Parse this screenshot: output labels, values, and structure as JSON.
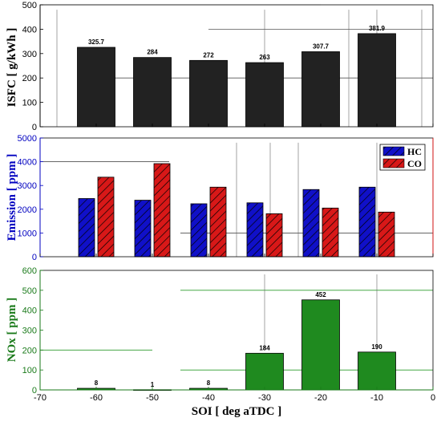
{
  "chart_data": [
    {
      "type": "bar",
      "ylabel": "ISFC [ g/kWh ]",
      "ylim": [
        0,
        500
      ],
      "yticks": [
        "0",
        "100",
        "200",
        "300",
        "400",
        "500"
      ],
      "x": [
        -60,
        -50,
        -40,
        -30,
        -20,
        -10
      ],
      "values": [
        325.7,
        284,
        272,
        263,
        307.7,
        381.9
      ],
      "data_labels": [
        "325.7",
        "284",
        "272",
        "263",
        "307.7",
        "381.9"
      ],
      "colors": {
        "bar": "#222222",
        "axis": "#000000"
      }
    },
    {
      "type": "bar",
      "ylabel": "Emission [ ppm ]",
      "ylim": [
        0,
        5000
      ],
      "yticks": [
        "0",
        "1000",
        "2000",
        "3000",
        "4000",
        "5000"
      ],
      "x": [
        -60,
        -50,
        -40,
        -30,
        -20,
        -10
      ],
      "series": [
        {
          "name": "HC",
          "values": [
            2450,
            2380,
            2230,
            2270,
            2830,
            2930
          ],
          "color": "#1010c8"
        },
        {
          "name": "CO",
          "values": [
            3350,
            3920,
            2930,
            1810,
            2050,
            1880
          ],
          "color": "#d81818"
        }
      ],
      "legend": "top-right",
      "colors": {
        "left_axis": "#0000c0",
        "right_axis": "#d01010"
      }
    },
    {
      "type": "bar",
      "ylabel": "NOx [ ppm ]",
      "xlabel": "SOI [ deg aTDC ]",
      "ylim": [
        0,
        600
      ],
      "yticks": [
        "0",
        "100",
        "200",
        "300",
        "400",
        "500",
        "600"
      ],
      "xlim": [
        -70,
        0
      ],
      "xticks": [
        "-70",
        "-60",
        "-50",
        "-40",
        "-30",
        "-20",
        "-10",
        "0"
      ],
      "x": [
        -60,
        -50,
        -40,
        -30,
        -20,
        -10
      ],
      "values": [
        8,
        1,
        8,
        184,
        452,
        190
      ],
      "data_labels": [
        "8",
        "1",
        "8",
        "184",
        "452",
        "190"
      ],
      "colors": {
        "bar": "#1f8a1f",
        "axis": "#1a7a1a"
      }
    }
  ]
}
